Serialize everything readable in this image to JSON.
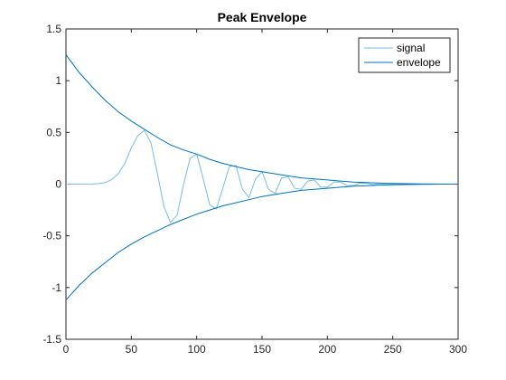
{
  "chart_data": {
    "type": "line",
    "title": "Peak Envelope",
    "xlabel": "",
    "ylabel": "",
    "xlim": [
      0,
      300
    ],
    "ylim": [
      -1.5,
      1.5
    ],
    "xticks": [
      0,
      50,
      100,
      150,
      200,
      250,
      300
    ],
    "yticks": [
      -1.5,
      -1,
      -0.5,
      0,
      0.5,
      1,
      1.5
    ],
    "grid": false,
    "legend_position": "top-right",
    "series": [
      {
        "name": "signal",
        "color": "#77bde0",
        "x": [
          0,
          10,
          20,
          25,
          30,
          35,
          40,
          45,
          50,
          55,
          60,
          65,
          70,
          75,
          80,
          85,
          90,
          95,
          100,
          105,
          110,
          115,
          120,
          125,
          130,
          135,
          140,
          145,
          150,
          155,
          160,
          165,
          170,
          175,
          180,
          185,
          190,
          195,
          200,
          205,
          210,
          215,
          220,
          225,
          230,
          235,
          240,
          250,
          260,
          280,
          300
        ],
        "y": [
          0,
          0,
          0.001,
          0.004,
          0.015,
          0.045,
          0.1,
          0.2,
          0.35,
          0.47,
          0.52,
          0.4,
          0.1,
          -0.22,
          -0.37,
          -0.3,
          0,
          0.25,
          0.29,
          0.05,
          -0.2,
          -0.24,
          -0.04,
          0.17,
          0.18,
          -0.05,
          -0.13,
          0.05,
          0.12,
          -0.05,
          -0.09,
          0.06,
          0.07,
          -0.04,
          -0.05,
          0.03,
          0.04,
          -0.03,
          -0.03,
          0.02,
          0.02,
          -0.015,
          -0.012,
          0.01,
          0.008,
          -0.005,
          0.004,
          0.002,
          0,
          0,
          0
        ]
      },
      {
        "name": "envelope",
        "color": "#0072bd",
        "x": [
          0,
          10,
          20,
          30,
          40,
          50,
          60,
          70,
          80,
          90,
          100,
          110,
          120,
          130,
          140,
          150,
          160,
          170,
          180,
          190,
          200,
          210,
          220,
          230,
          240,
          250,
          260,
          270,
          280,
          290,
          300
        ],
        "y": [
          1.25,
          1.08,
          0.94,
          0.81,
          0.7,
          0.61,
          0.53,
          0.45,
          0.38,
          0.33,
          0.29,
          0.24,
          0.2,
          0.17,
          0.14,
          0.12,
          0.1,
          0.08,
          0.06,
          0.05,
          0.04,
          0.03,
          0.02,
          0.015,
          0.01,
          0.006,
          0.004,
          0.002,
          0.001,
          0,
          0
        ]
      },
      {
        "name": "",
        "color": "#0072bd",
        "x": [
          0,
          10,
          20,
          30,
          40,
          50,
          60,
          70,
          80,
          90,
          100,
          110,
          120,
          130,
          140,
          150,
          160,
          170,
          180,
          190,
          200,
          210,
          220,
          230,
          240,
          250,
          260,
          270,
          280,
          290,
          300
        ],
        "y": [
          -1.12,
          -0.98,
          -0.86,
          -0.76,
          -0.66,
          -0.58,
          -0.51,
          -0.45,
          -0.39,
          -0.34,
          -0.29,
          -0.25,
          -0.21,
          -0.18,
          -0.15,
          -0.12,
          -0.1,
          -0.08,
          -0.06,
          -0.05,
          -0.04,
          -0.03,
          -0.02,
          -0.015,
          -0.01,
          -0.006,
          -0.004,
          -0.002,
          -0.001,
          0,
          0
        ]
      }
    ],
    "legend": [
      "signal",
      "envelope"
    ]
  }
}
